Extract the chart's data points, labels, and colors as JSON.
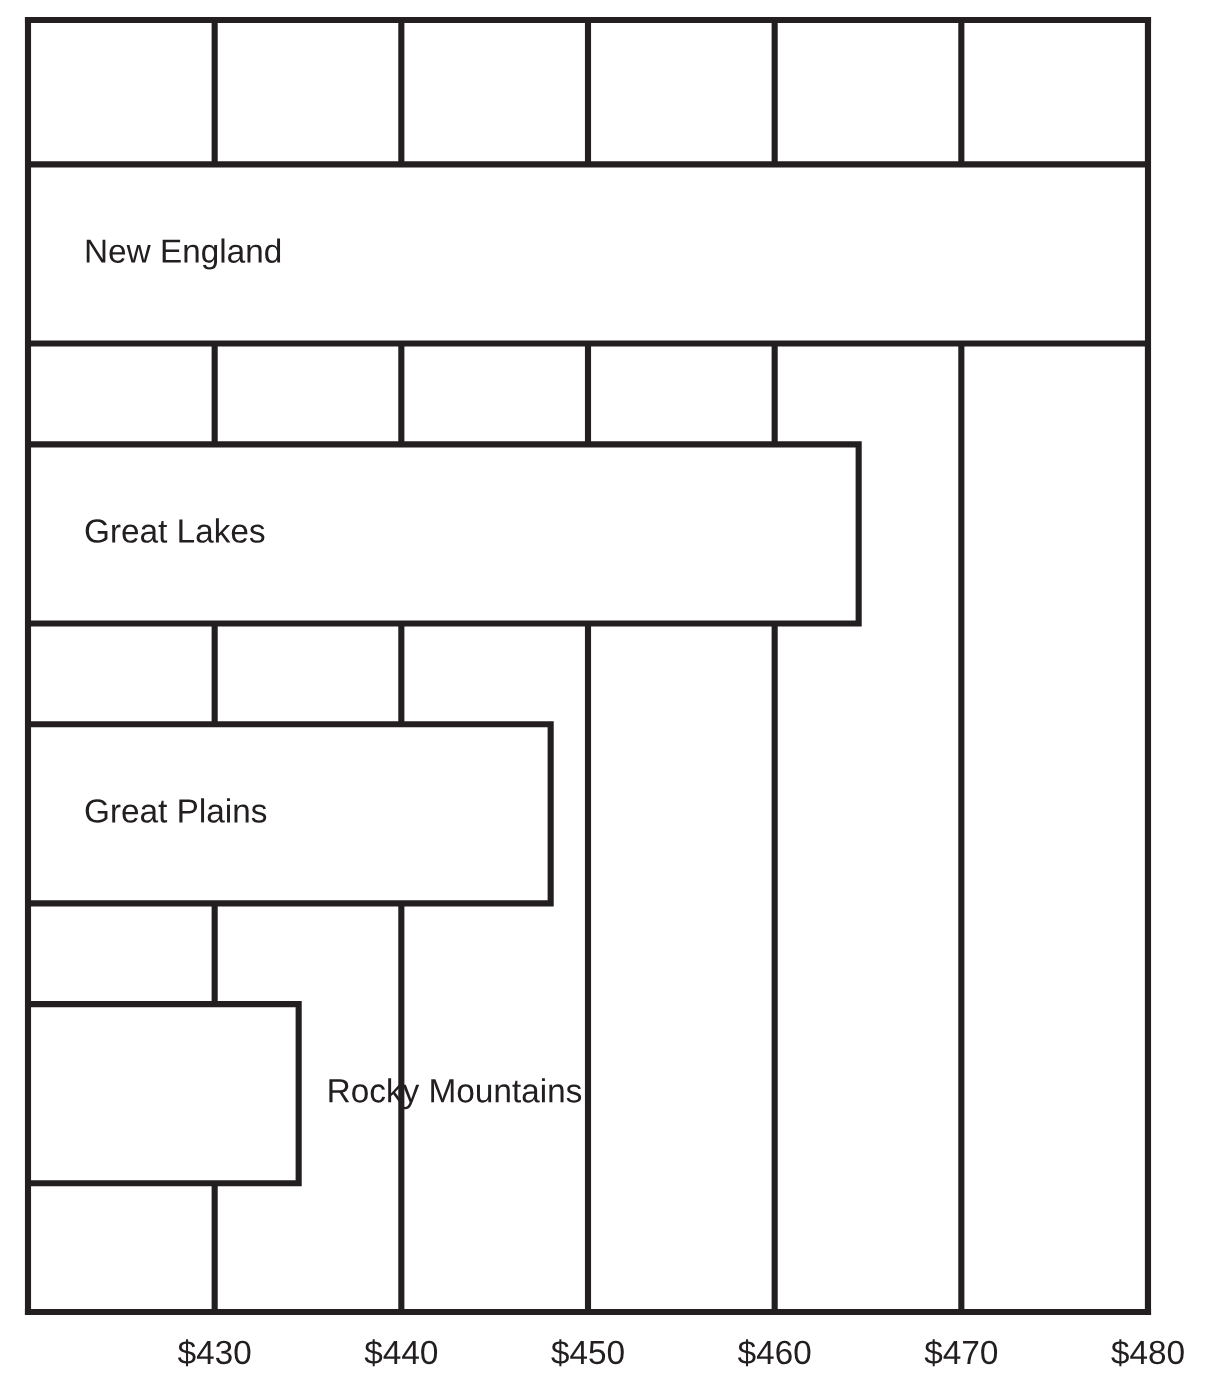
{
  "chart_data": {
    "type": "bar",
    "orientation": "horizontal",
    "categories": [
      "New England",
      "Great Lakes",
      "Great Plains",
      "Rocky Mountains"
    ],
    "values": [
      480,
      464.5,
      448,
      434.5
    ],
    "color": "#ffffff",
    "xlim": [
      420,
      480
    ],
    "xticks": [
      {
        "value": 430,
        "label": "$430"
      },
      {
        "value": 440,
        "label": "$440"
      },
      {
        "value": 450,
        "label": "$450"
      },
      {
        "value": 460,
        "label": "$460"
      },
      {
        "value": 470,
        "label": "$470"
      },
      {
        "value": 480,
        "label": "$480"
      }
    ],
    "grid": "x"
  }
}
